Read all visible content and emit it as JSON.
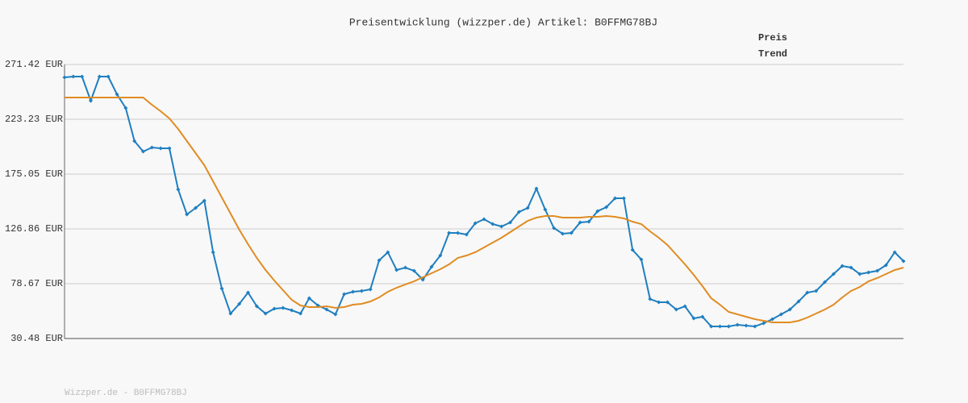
{
  "chart_data": {
    "type": "line",
    "title": "Preisentwicklung (wizzper.de) Artikel: B0FFMG78BJ",
    "footer": "Wizzper.de - B0FFMG78BJ",
    "legend": "top-right",
    "grid": true,
    "categories": [
      null,
      null,
      null,
      null,
      null,
      null,
      null,
      null,
      null,
      null,
      null,
      null,
      null,
      null,
      null,
      null,
      null,
      null,
      null,
      null,
      null,
      null,
      null,
      null,
      null,
      null,
      null,
      null,
      null,
      null,
      null,
      null,
      null,
      null,
      null,
      null,
      null,
      null,
      null,
      null,
      null,
      null,
      null,
      null,
      null,
      null,
      null,
      null,
      null,
      null,
      null,
      null,
      null,
      null,
      null,
      null,
      null,
      null,
      null,
      null,
      null,
      null,
      null,
      null,
      null,
      null,
      null,
      null,
      null,
      null,
      null,
      null,
      null,
      null,
      null,
      null,
      null,
      null,
      null,
      null,
      null,
      null,
      null,
      null,
      null,
      null,
      null,
      null,
      null,
      null,
      null,
      null,
      null,
      null,
      null,
      null,
      null
    ],
    "ylim": [
      30.48,
      271.42
    ],
    "yticks": [
      {
        "value": 30.48,
        "label": "30.48 EUR"
      },
      {
        "value": 78.67,
        "label": "78.67 EUR"
      },
      {
        "value": 126.86,
        "label": "126.86 EUR"
      },
      {
        "value": 175.05,
        "label": "175.05 EUR"
      },
      {
        "value": 223.23,
        "label": "223.23 EUR"
      },
      {
        "value": 271.42,
        "label": "271.42 EUR"
      }
    ],
    "series": [
      {
        "name": "Preis",
        "color": "#1f7fc0",
        "marker": "diamond",
        "values": [
          260.08,
          260.79,
          260.79,
          239.53,
          260.79,
          260.79,
          245.2,
          233.15,
          204.1,
          194.89,
          198.43,
          197.72,
          197.72,
          161.58,
          139.61,
          145.28,
          151.66,
          106.31,
          74.42,
          52.45,
          60.95,
          70.87,
          58.83,
          52.45,
          56.7,
          57.41,
          55.28,
          52.45,
          65.91,
          59.53,
          55.99,
          51.74,
          69.46,
          71.58,
          72.29,
          73.71,
          99.22,
          106.31,
          90.72,
          92.84,
          90.01,
          82.21,
          93.55,
          103.47,
          123.31,
          123.31,
          121.9,
          131.82,
          135.36,
          131.11,
          128.98,
          132.53,
          141.74,
          145.28,
          162.29,
          143.86,
          127.57,
          122.6,
          123.31,
          132.53,
          133.23,
          142.45,
          145.99,
          153.79,
          153.79,
          108.43,
          99.93,
          65.2,
          62.37,
          62.37,
          55.99,
          58.83,
          48.2,
          49.61,
          41.11,
          41.11,
          41.11,
          42.53,
          41.82,
          41.11,
          43.94,
          47.49,
          51.74,
          55.99,
          63.08,
          70.87,
          72.29,
          80.09,
          87.17,
          94.26,
          92.84,
          87.17,
          88.59,
          90.01,
          94.97,
          106.31,
          98.51
        ]
      },
      {
        "name": "Trend",
        "color": "#e08c22",
        "values": [
          242.37,
          242.37,
          242.37,
          242.37,
          242.37,
          242.37,
          242.37,
          242.37,
          242.37,
          242.37,
          235.99,
          230.32,
          223.94,
          214.73,
          204.1,
          193.47,
          182.84,
          168.67,
          154.49,
          140.32,
          126.15,
          113.39,
          101.35,
          90.72,
          81.5,
          73.0,
          64.5,
          59.53,
          58.12,
          58.12,
          58.83,
          57.41,
          58.12,
          60.24,
          60.95,
          63.08,
          66.62,
          71.58,
          75.12,
          77.96,
          80.79,
          84.34,
          87.88,
          91.42,
          95.68,
          101.35,
          103.47,
          106.31,
          110.56,
          114.81,
          119.06,
          124.02,
          128.98,
          133.94,
          136.78,
          138.19,
          138.19,
          136.78,
          136.78,
          136.78,
          137.49,
          137.49,
          138.19,
          137.49,
          136.07,
          133.23,
          131.11,
          124.73,
          119.06,
          112.68,
          104.18,
          95.68,
          86.46,
          76.54,
          65.91,
          60.24,
          53.87,
          51.74,
          49.61,
          47.49,
          46.07,
          44.65,
          44.65,
          44.65,
          46.07,
          48.9,
          52.45,
          55.99,
          60.24,
          66.62,
          72.29,
          75.83,
          80.79,
          83.63,
          87.17,
          90.72,
          92.84
        ]
      }
    ]
  }
}
